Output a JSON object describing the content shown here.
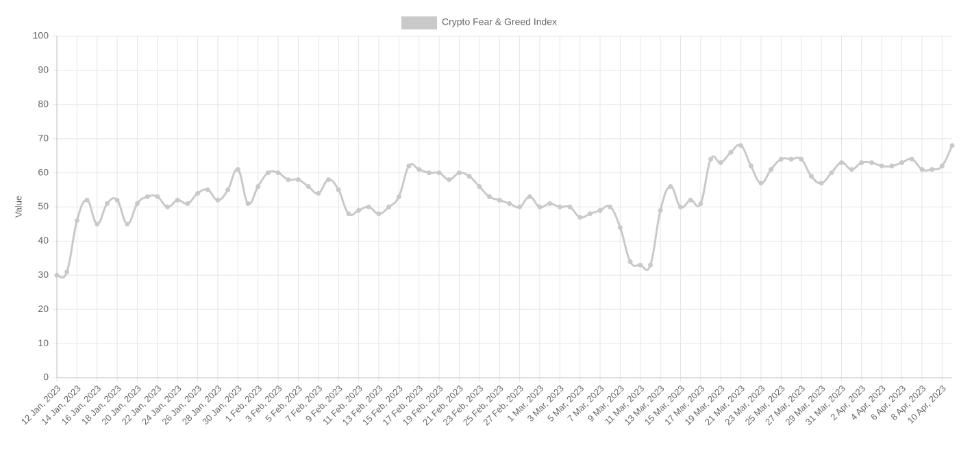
{
  "chart_data": {
    "type": "line",
    "categories": [
      "12 Jan, 2023",
      null,
      "14 Jan, 2023",
      null,
      "16 Jan, 2023",
      null,
      "18 Jan, 2023",
      null,
      "20 Jan, 2023",
      null,
      "22 Jan, 2023",
      null,
      "24 Jan, 2023",
      null,
      "26 Jan, 2023",
      null,
      "28 Jan, 2023",
      null,
      "30 Jan, 2023",
      null,
      "1 Feb, 2023",
      null,
      "3 Feb, 2023",
      null,
      "5 Feb, 2023",
      null,
      "7 Feb, 2023",
      null,
      "9 Feb, 2023",
      null,
      "11 Feb, 2023",
      null,
      "13 Feb, 2023",
      null,
      "15 Feb, 2023",
      null,
      "17 Feb, 2023",
      null,
      "19 Feb, 2023",
      null,
      "21 Feb, 2023",
      null,
      "23 Feb, 2023",
      null,
      "25 Feb, 2023",
      null,
      "27 Feb, 2023",
      null,
      "1 Mar, 2023",
      null,
      "3 Mar, 2023",
      null,
      "5 Mar, 2023",
      null,
      "7 Mar, 2023",
      null,
      "9 Mar, 2023",
      null,
      "11 Mar, 2023",
      null,
      "13 Mar, 2023",
      null,
      "15 Mar, 2023",
      null,
      "17 Mar, 2023",
      null,
      "19 Mar, 2023",
      null,
      "21 Mar, 2023",
      null,
      "23 Mar, 2023",
      null,
      "25 Mar, 2023",
      null,
      "27 Mar, 2023",
      null,
      "29 Mar, 2023",
      null,
      "31 Mar, 2023",
      null,
      "2 Apr, 2023",
      null,
      "4 Apr, 2023",
      null,
      "6 Apr, 2023",
      null,
      "8 Apr, 2023",
      null,
      "10 Apr, 2023",
      null
    ],
    "series": [
      {
        "name": "Crypto Fear & Greed Index",
        "color": "#c9c9c9",
        "values": [
          30,
          31,
          46,
          52,
          45,
          51,
          52,
          45,
          51,
          53,
          53,
          50,
          52,
          51,
          54,
          55,
          52,
          55,
          61,
          51,
          56,
          60,
          60,
          58,
          58,
          56,
          54,
          58,
          55,
          48,
          49,
          50,
          48,
          50,
          53,
          62,
          61,
          60,
          60,
          58,
          60,
          59,
          56,
          53,
          52,
          51,
          50,
          53,
          50,
          51,
          50,
          50,
          47,
          48,
          49,
          50,
          44,
          34,
          33,
          33,
          49,
          56,
          50,
          52,
          51,
          64,
          63,
          66,
          68,
          62,
          57,
          61,
          64,
          64,
          64,
          59,
          57,
          60,
          63,
          61,
          63,
          63,
          62,
          62,
          63,
          64,
          61,
          61,
          62,
          68
        ]
      }
    ],
    "y_label": "Value",
    "ylim": [
      0,
      100
    ],
    "yticks": [
      0,
      10,
      20,
      30,
      40,
      50,
      60,
      70,
      80,
      90,
      100
    ],
    "grid": true,
    "legend": "top"
  }
}
